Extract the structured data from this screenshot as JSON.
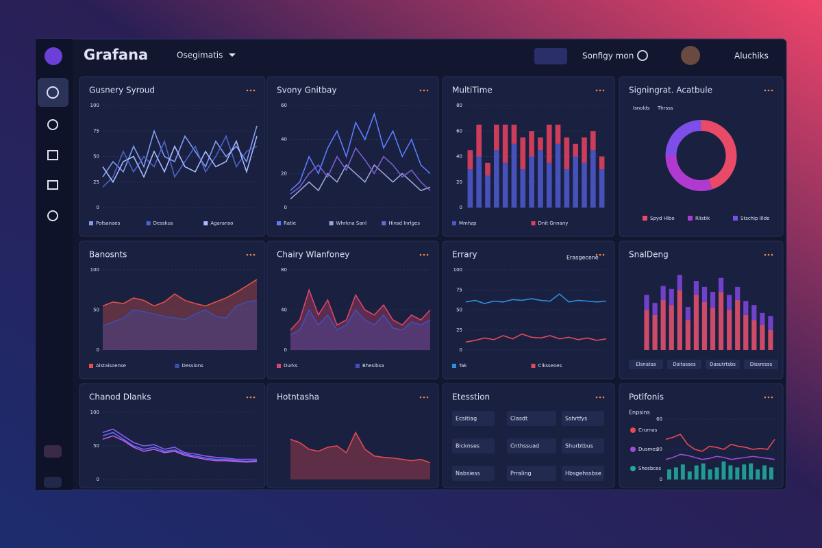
{
  "header": {
    "brand": "Grafana",
    "dashboard": "Osegimatis",
    "search": "Sonfigy mon",
    "user": "Aluchiks"
  },
  "panels": [
    {
      "title": "Gusnery Syroud",
      "type": "line",
      "ylim": [
        0,
        100
      ],
      "yticks": [
        0,
        25,
        50,
        75,
        100
      ],
      "series": [
        {
          "name": "Pofsanaes",
          "color": "#7f9cf0",
          "values": [
            30,
            45,
            35,
            60,
            40,
            75,
            50,
            45,
            70,
            55,
            40,
            65,
            50,
            60,
            45,
            80
          ]
        },
        {
          "name": "Desskus",
          "color": "#4a64c8",
          "values": [
            20,
            30,
            55,
            35,
            50,
            40,
            65,
            30,
            45,
            60,
            35,
            50,
            70,
            40,
            55,
            60
          ]
        },
        {
          "name": "Agaranso",
          "color": "#a9bcff",
          "values": [
            40,
            25,
            45,
            50,
            30,
            55,
            35,
            60,
            40,
            35,
            55,
            40,
            45,
            65,
            35,
            70
          ]
        }
      ]
    },
    {
      "title": "Svony Gnitbay",
      "type": "line",
      "ylim": [
        0,
        60
      ],
      "yticks": [
        0,
        20,
        40,
        60
      ],
      "series": [
        {
          "name": "Ratie",
          "color": "#5b7dff",
          "values": [
            10,
            15,
            30,
            20,
            35,
            45,
            30,
            50,
            40,
            55,
            35,
            45,
            30,
            40,
            25,
            20
          ]
        },
        {
          "name": "Whrkna Sanl",
          "color": "#9aa5d8",
          "values": [
            5,
            10,
            15,
            10,
            20,
            15,
            25,
            20,
            15,
            25,
            20,
            15,
            20,
            15,
            10,
            12
          ]
        },
        {
          "name": "Hinsd Inrlges",
          "color": "#7b5fd0",
          "values": [
            8,
            12,
            20,
            25,
            18,
            30,
            22,
            35,
            28,
            20,
            30,
            25,
            18,
            22,
            15,
            10
          ]
        }
      ]
    },
    {
      "title": "MultiTime",
      "type": "bar",
      "ylim": [
        0,
        80
      ],
      "yticks": [
        0,
        20,
        40,
        60,
        80
      ],
      "series": [
        {
          "name": "Mmhzp",
          "color": "#4b58c8",
          "values": [
            30,
            40,
            25,
            45,
            35,
            50,
            30,
            40,
            45,
            35,
            50,
            30,
            40,
            35,
            45,
            30
          ]
        },
        {
          "name": "Dnit Gnnany",
          "color": "#e0405e",
          "values": [
            15,
            25,
            10,
            20,
            30,
            15,
            25,
            20,
            10,
            30,
            15,
            25,
            10,
            20,
            15,
            10
          ]
        }
      ]
    },
    {
      "title": "Signingrat. Acatbule",
      "type": "donut",
      "tabs": [
        "Isnolds",
        "Thrsss"
      ],
      "series": [
        {
          "name": "Spyd Hlbo",
          "color": "#e84a67",
          "values": [
            45
          ]
        },
        {
          "name": "Rlistik",
          "color": "#b03ad0",
          "values": [
            30
          ]
        },
        {
          "name": "Stschip Illde",
          "color": "#7d4ee8",
          "values": [
            25
          ]
        }
      ]
    },
    {
      "title": "Banosnts",
      "type": "area",
      "ylim": [
        0,
        100
      ],
      "yticks": [
        0,
        50,
        100
      ],
      "series": [
        {
          "name": "Alstaisoense",
          "color": "#e0524a",
          "values": [
            55,
            60,
            58,
            65,
            62,
            55,
            60,
            70,
            62,
            58,
            55,
            60,
            65,
            72,
            80,
            88
          ]
        },
        {
          "name": "Dessions",
          "color": "#3b4fae",
          "values": [
            30,
            35,
            40,
            50,
            48,
            45,
            42,
            40,
            38,
            45,
            50,
            42,
            40,
            55,
            60,
            62
          ]
        }
      ]
    },
    {
      "title": "Chairy Wlanfoney",
      "type": "area",
      "ylim": [
        0,
        80
      ],
      "yticks": [
        0,
        40,
        80
      ],
      "series": [
        {
          "name": "Durks",
          "color": "#d9466a",
          "values": [
            20,
            30,
            60,
            35,
            50,
            25,
            30,
            55,
            40,
            35,
            45,
            30,
            25,
            35,
            30,
            40
          ]
        },
        {
          "name": "Bhesibsa",
          "color": "#4150b8",
          "values": [
            15,
            20,
            40,
            25,
            35,
            20,
            25,
            40,
            30,
            25,
            35,
            22,
            20,
            28,
            25,
            30
          ]
        }
      ]
    },
    {
      "title": "Errary",
      "type": "line",
      "badge": "Erasgecene",
      "ylim": [
        0,
        100
      ],
      "yticks": [
        0,
        25,
        50,
        75,
        100
      ],
      "series": [
        {
          "name": "Tak",
          "color": "#2f8fe0",
          "values": [
            60,
            62,
            58,
            61,
            60,
            63,
            62,
            64,
            62,
            61,
            70,
            60,
            62,
            61,
            60,
            61
          ]
        },
        {
          "name": "Clksseoes",
          "color": "#e04a5e",
          "values": [
            10,
            12,
            15,
            13,
            18,
            14,
            20,
            16,
            15,
            18,
            14,
            16,
            13,
            15,
            12,
            14
          ]
        }
      ]
    },
    {
      "title": "SnalDeng",
      "type": "bar",
      "ylim": [
        0,
        80
      ],
      "buttons": [
        "Elsnatas",
        "Dsitasses",
        "Dasutrtsbs",
        "Dissresss"
      ],
      "series": [
        {
          "color": "#e0506e",
          "values": [
            40,
            35,
            50,
            45,
            60,
            30,
            55,
            48,
            42,
            58,
            40,
            50,
            35,
            30,
            25,
            20
          ]
        },
        {
          "color": "#7a45d8",
          "values": [
            15,
            12,
            14,
            16,
            15,
            13,
            14,
            15,
            16,
            14,
            15,
            13,
            14,
            15,
            12,
            14
          ]
        }
      ]
    },
    {
      "title": "Chanod Dlanks",
      "type": "line",
      "ylim": [
        0,
        100
      ],
      "yticks": [
        0,
        50,
        100
      ],
      "series": [
        {
          "color": "#8b5cf6",
          "values": [
            70,
            75,
            65,
            55,
            50,
            52,
            45,
            48,
            40,
            38,
            35,
            33,
            32,
            30,
            30,
            30
          ]
        },
        {
          "color": "#5f6bff",
          "values": [
            65,
            70,
            60,
            50,
            45,
            48,
            42,
            44,
            38,
            35,
            32,
            30,
            30,
            28,
            27,
            28
          ]
        },
        {
          "color": "#c060e0",
          "values": [
            60,
            65,
            58,
            48,
            42,
            45,
            40,
            42,
            36,
            33,
            30,
            28,
            28,
            27,
            26,
            27
          ]
        }
      ]
    },
    {
      "title": "Hotntasha",
      "type": "area",
      "ylim": [
        0,
        100
      ],
      "series": [
        {
          "color": "#e04a52",
          "values": [
            60,
            55,
            45,
            42,
            48,
            50,
            40,
            70,
            45,
            35,
            33,
            32,
            30,
            28,
            30,
            25
          ]
        }
      ]
    },
    {
      "title": "Etesstion",
      "type": "table",
      "rows": [
        [
          "Ecsitiag",
          "Clasdt",
          "Sshrtfys"
        ],
        [
          "Bicknses",
          "Cnthssuad",
          "Shurbtbus"
        ],
        [
          "Nabsiess",
          "Prraling",
          "Hbsgehssbse"
        ]
      ]
    },
    {
      "title": "Potlfonis",
      "type": "line",
      "legend_title": "Enpsins",
      "ylim": [
        0,
        60
      ],
      "yticks": [
        0,
        30,
        60
      ],
      "series": [
        {
          "name": "Crurnas",
          "color": "#e84a55",
          "values": [
            40,
            42,
            45,
            35,
            30,
            28,
            33,
            32,
            30,
            35,
            33,
            32,
            30,
            31,
            30,
            40
          ]
        },
        {
          "name": "Dusmes",
          "color": "#a04ad8",
          "values": [
            20,
            22,
            25,
            24,
            22,
            20,
            21,
            23,
            22,
            20,
            21,
            22,
            23,
            22,
            21,
            20
          ]
        },
        {
          "name": "Shesbces",
          "color": "#22a89a",
          "type": "bar",
          "values": [
            10,
            12,
            15,
            8,
            14,
            16,
            10,
            12,
            18,
            14,
            12,
            15,
            16,
            10,
            14,
            12
          ]
        }
      ]
    }
  ]
}
